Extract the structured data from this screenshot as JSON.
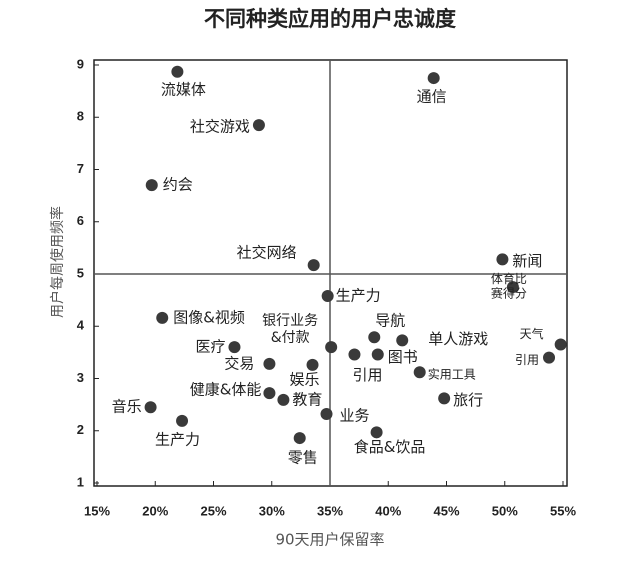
{
  "chart_data": {
    "type": "scatter",
    "title": "不同种类应用的用户忠诚度",
    "x_label": "90天用户保留率",
    "y_label": "用户每周使用频率",
    "labels": [
      "流媒体",
      "通信",
      "社交游戏",
      "约会",
      "社交网络",
      "新闻",
      "体育比赛得分",
      "天气",
      "引用",
      "生产力",
      "图像&视频",
      "医疗",
      "交易",
      "娱乐",
      "银行业务&付款",
      "导航",
      "单人游戏",
      "图书",
      "引用",
      "实用工具",
      "旅行",
      "健康&体能",
      "教育",
      "音乐",
      "生产力",
      "业务",
      "零售",
      "食品&饮品"
    ],
    "x": [
      21.9,
      43.9,
      28.9,
      19.7,
      33.6,
      49.8,
      50.7,
      54.8,
      53.8,
      34.8,
      20.6,
      26.8,
      29.8,
      33.5,
      35.1,
      38.8,
      41.2,
      39.1,
      37.1,
      42.7,
      44.8,
      29.8,
      31.0,
      19.6,
      22.3,
      34.7,
      32.4,
      39.0
    ],
    "y": [
      8.87,
      8.75,
      7.85,
      6.7,
      5.17,
      5.28,
      4.75,
      3.65,
      3.4,
      4.58,
      4.16,
      3.6,
      3.28,
      3.26,
      3.6,
      3.79,
      3.73,
      3.46,
      3.46,
      3.12,
      2.62,
      2.72,
      2.59,
      2.45,
      2.19,
      2.32,
      1.86,
      1.97
    ],
    "color": "#3a3a3a",
    "xlim": [
      15,
      55
    ],
    "ylim": [
      1,
      9
    ],
    "xticks": [
      {
        "value": 15,
        "label": "15%"
      },
      {
        "value": 20,
        "label": "20%"
      },
      {
        "value": 25,
        "label": "25%"
      },
      {
        "value": 30,
        "label": "30%"
      },
      {
        "value": 35,
        "label": "35%"
      },
      {
        "value": 40,
        "label": "40%"
      },
      {
        "value": 45,
        "label": "45%"
      },
      {
        "value": 50,
        "label": "50%"
      },
      {
        "value": 55,
        "label": "55%"
      }
    ],
    "yticks": [
      1,
      2,
      3,
      4,
      5,
      6,
      7,
      8,
      9
    ],
    "divider_x": 35,
    "divider_y": 5
  }
}
